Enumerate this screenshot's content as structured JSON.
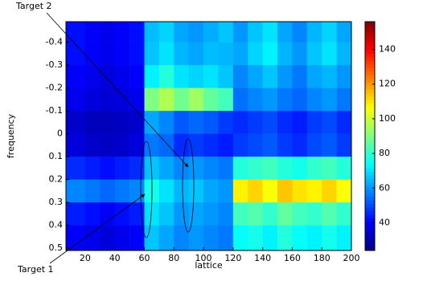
{
  "chart_data": {
    "type": "heatmap",
    "xlabel": "lattice",
    "ylabel": "frequency",
    "x": [
      7,
      20,
      30,
      40,
      50,
      60,
      70,
      80,
      90,
      100,
      110,
      120,
      130,
      140,
      150,
      160,
      170,
      180,
      190,
      200
    ],
    "y": [
      -0.49,
      -0.4,
      -0.3,
      -0.2,
      -0.1,
      0,
      0.1,
      0.2,
      0.3,
      0.4,
      0.51
    ],
    "values": [
      [
        42,
        40,
        38,
        40,
        42,
        65,
        68,
        62,
        60,
        63,
        66,
        60,
        66,
        70,
        62,
        58,
        64,
        68,
        62
      ],
      [
        42,
        40,
        38,
        40,
        42,
        66,
        70,
        64,
        62,
        65,
        64,
        62,
        68,
        72,
        64,
        60,
        66,
        70,
        64
      ],
      [
        40,
        38,
        36,
        38,
        40,
        72,
        78,
        70,
        68,
        70,
        66,
        58,
        62,
        66,
        60,
        56,
        62,
        64,
        60
      ],
      [
        38,
        36,
        35,
        36,
        38,
        90,
        96,
        88,
        94,
        86,
        82,
        55,
        58,
        60,
        56,
        54,
        58,
        60,
        56
      ],
      [
        34,
        32,
        32,
        33,
        34,
        62,
        58,
        52,
        54,
        52,
        48,
        46,
        48,
        50,
        46,
        44,
        48,
        50,
        46
      ],
      [
        36,
        34,
        33,
        34,
        36,
        56,
        54,
        46,
        48,
        46,
        44,
        48,
        50,
        52,
        48,
        46,
        50,
        52,
        48
      ],
      [
        46,
        44,
        42,
        44,
        46,
        66,
        62,
        58,
        60,
        58,
        56,
        78,
        80,
        82,
        78,
        76,
        80,
        82,
        78
      ],
      [
        58,
        56,
        54,
        56,
        58,
        76,
        70,
        64,
        66,
        62,
        60,
        108,
        112,
        106,
        114,
        110,
        108,
        112,
        106
      ],
      [
        44,
        42,
        40,
        42,
        44,
        70,
        66,
        60,
        62,
        60,
        58,
        82,
        84,
        80,
        86,
        82,
        80,
        84,
        80
      ],
      [
        40,
        38,
        36,
        38,
        40,
        66,
        62,
        58,
        60,
        58,
        56,
        74,
        76,
        72,
        78,
        74,
        72,
        76,
        72
      ]
    ],
    "colormap": "jet",
    "xlim": [
      7,
      200
    ],
    "xticks": [
      20,
      40,
      60,
      80,
      100,
      120,
      140,
      160,
      180,
      200
    ],
    "ylim": [
      -0.49,
      0.51
    ],
    "yticks": [
      -0.4,
      -0.3,
      -0.2,
      -0.1,
      0,
      0.1,
      0.2,
      0.3,
      0.4,
      0.5
    ],
    "clim": [
      24,
      156
    ],
    "cticks": [
      40,
      60,
      80,
      100,
      120,
      140
    ],
    "annotations": [
      "Target 1",
      "Target 2"
    ]
  }
}
